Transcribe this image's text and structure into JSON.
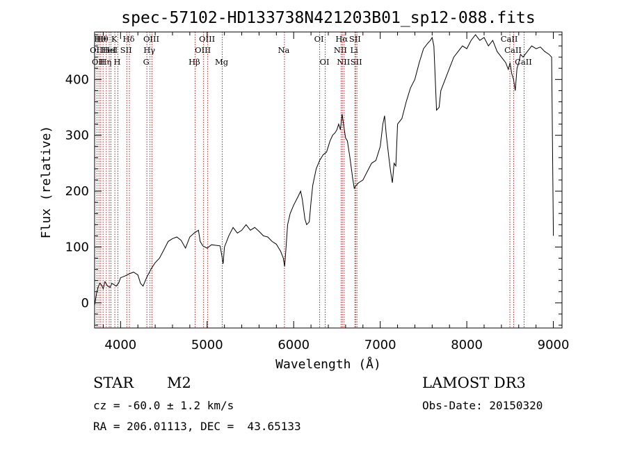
{
  "chart_data": {
    "type": "line",
    "title": "spec-57102-HD133738N421203B01_sp12-088.fits",
    "xlabel": "Wavelength (Å)",
    "ylabel": "Flux (relative)",
    "xlim": [
      3700,
      9100
    ],
    "ylim": [
      -45,
      485
    ],
    "xticks": [
      4000,
      5000,
      6000,
      7000,
      8000,
      9000
    ],
    "yticks": [
      0,
      100,
      200,
      300,
      400
    ],
    "series": [
      {
        "name": "flux",
        "x": [
          3700,
          3720,
          3740,
          3760,
          3780,
          3800,
          3820,
          3850,
          3880,
          3900,
          3920,
          3950,
          3980,
          4000,
          4050,
          4100,
          4150,
          4200,
          4230,
          4260,
          4300,
          4350,
          4400,
          4450,
          4500,
          4550,
          4600,
          4650,
          4700,
          4750,
          4800,
          4850,
          4880,
          4900,
          4920,
          4950,
          5000,
          5050,
          5100,
          5150,
          5170,
          5185,
          5200,
          5250,
          5300,
          5350,
          5400,
          5450,
          5500,
          5550,
          5600,
          5650,
          5700,
          5750,
          5800,
          5850,
          5880,
          5895,
          5910,
          5930,
          5960,
          6000,
          6050,
          6080,
          6100,
          6130,
          6150,
          6180,
          6200,
          6220,
          6260,
          6300,
          6340,
          6380,
          6420,
          6450,
          6480,
          6500,
          6520,
          6540,
          6560,
          6580,
          6600,
          6620,
          6650,
          6680,
          6700,
          6720,
          6750,
          6800,
          6850,
          6900,
          6950,
          7000,
          7030,
          7050,
          7070,
          7100,
          7120,
          7140,
          7160,
          7180,
          7200,
          7250,
          7300,
          7350,
          7400,
          7450,
          7500,
          7550,
          7580,
          7600,
          7620,
          7650,
          7680,
          7700,
          7750,
          7800,
          7850,
          7900,
          7950,
          8000,
          8050,
          8100,
          8150,
          8200,
          8250,
          8300,
          8350,
          8400,
          8450,
          8480,
          8500,
          8520,
          8540,
          8560,
          8580,
          8600,
          8620,
          8650,
          8700,
          8750,
          8800,
          8850,
          8900,
          8950,
          8980,
          9000
        ],
        "y": [
          -5,
          15,
          28,
          35,
          32,
          25,
          38,
          30,
          28,
          35,
          33,
          30,
          36,
          45,
          48,
          52,
          55,
          50,
          35,
          30,
          45,
          60,
          72,
          80,
          95,
          110,
          115,
          118,
          112,
          98,
          118,
          125,
          128,
          130,
          110,
          102,
          98,
          104,
          103,
          102,
          85,
          70,
          100,
          120,
          135,
          125,
          130,
          140,
          130,
          135,
          128,
          120,
          118,
          110,
          105,
          92,
          80,
          65,
          95,
          140,
          160,
          175,
          190,
          200,
          185,
          150,
          140,
          145,
          180,
          210,
          240,
          255,
          265,
          270,
          290,
          300,
          305,
          310,
          320,
          310,
          338,
          315,
          295,
          290,
          260,
          225,
          205,
          210,
          215,
          220,
          235,
          250,
          255,
          280,
          320,
          335,
          300,
          260,
          235,
          215,
          250,
          245,
          320,
          330,
          360,
          385,
          400,
          430,
          455,
          465,
          470,
          475,
          460,
          345,
          350,
          380,
          400,
          420,
          440,
          450,
          460,
          455,
          470,
          480,
          470,
          475,
          460,
          470,
          450,
          440,
          430,
          418,
          430,
          410,
          400,
          380,
          420,
          430,
          445,
          440,
          450,
          460,
          455,
          458,
          450,
          445,
          440,
          120
        ]
      }
    ],
    "lines": [
      {
        "wl": 3727,
        "label": "OII",
        "row": 2
      },
      {
        "wl": 3750,
        "label": "OII",
        "row": 3
      },
      {
        "wl": 3771,
        "label": "Hθ",
        "row": 1
      },
      {
        "wl": 3798,
        "label": "Hθ",
        "row": 1
      },
      {
        "wl": 3835,
        "label": "Hη",
        "row": 3
      },
      {
        "wl": 3869,
        "label": "HeI",
        "row": 2
      },
      {
        "wl": 3889,
        "label": "HeI",
        "row": 2
      },
      {
        "wl": 3934,
        "label": "K",
        "row": 1
      },
      {
        "wl": 3969,
        "label": "H",
        "row": 3
      },
      {
        "wl": 4072,
        "label": "SII",
        "row": 2
      },
      {
        "wl": 4102,
        "label": "Hδ",
        "row": 1
      },
      {
        "wl": 4304,
        "label": "G",
        "row": 3
      },
      {
        "wl": 4340,
        "label": "Hγ",
        "row": 2
      },
      {
        "wl": 4363,
        "label": "OIII",
        "row": 1
      },
      {
        "wl": 4861,
        "label": "Hβ",
        "row": 3
      },
      {
        "wl": 4959,
        "label": "OIII",
        "row": 2
      },
      {
        "wl": 5007,
        "label": "OIII",
        "row": 1
      },
      {
        "wl": 5175,
        "label": "Mg",
        "row": 3
      },
      {
        "wl": 5893,
        "label": "Na",
        "row": 2
      },
      {
        "wl": 6300,
        "label": "OI",
        "row": 1
      },
      {
        "wl": 6364,
        "label": "OI",
        "row": 3
      },
      {
        "wl": 6548,
        "label": "NII",
        "row": 2
      },
      {
        "wl": 6563,
        "label": "Hα",
        "row": 1
      },
      {
        "wl": 6583,
        "label": "NII",
        "row": 3
      },
      {
        "wl": 6707,
        "label": "Li",
        "row": 2
      },
      {
        "wl": 6716,
        "label": "SII",
        "row": 1
      },
      {
        "wl": 6731,
        "label": "SII",
        "row": 3
      },
      {
        "wl": 8498,
        "label": "CaII",
        "row": 1
      },
      {
        "wl": 8542,
        "label": "CaII",
        "row": 2
      },
      {
        "wl": 8662,
        "label": "CaII",
        "row": 3
      }
    ]
  },
  "info": {
    "object_class": "STAR",
    "subclass": "M2",
    "survey": "LAMOST DR3",
    "cz": "cz = -60.0 ± 1.2 km/s",
    "obs_date": "Obs-Date: 20150320",
    "coords": "RA = 206.01113, DEC =  43.65133"
  },
  "colors": {
    "spectrum": "#000000",
    "line_markers": "#b22222",
    "background": "#ffffff"
  }
}
